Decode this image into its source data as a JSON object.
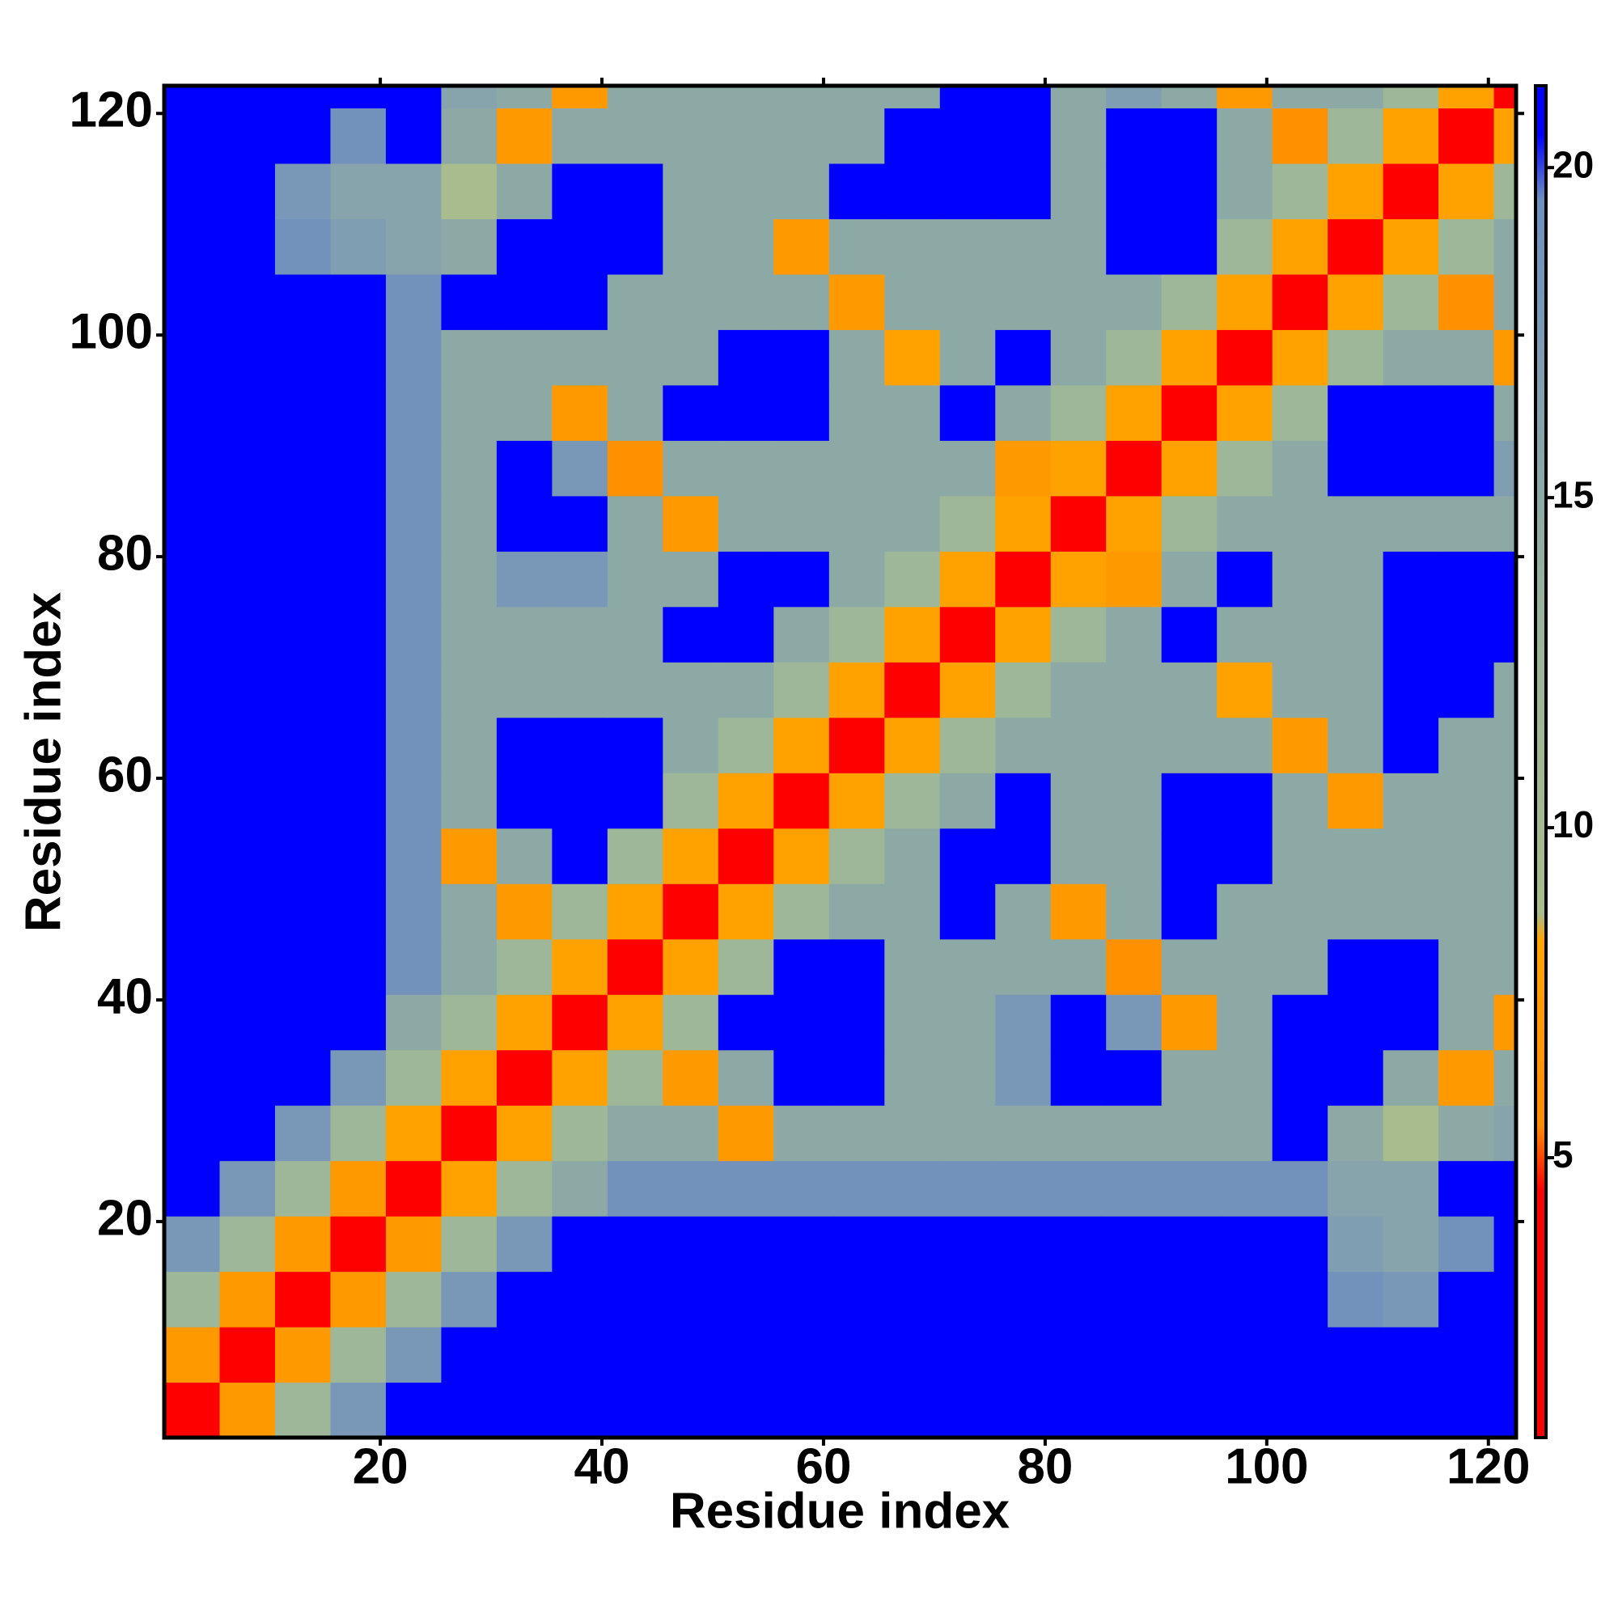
{
  "chart_data": {
    "type": "heatmap",
    "xlabel": "Residue index",
    "ylabel": "Residue index",
    "xbins": [
      0.5,
      5.5,
      10.5,
      15.5,
      20.5,
      25.5,
      30.5,
      35.5,
      40.5,
      45.5,
      50.5,
      55.5,
      60.5,
      65.5,
      70.5,
      75.5,
      80.5,
      85.5,
      90.5,
      95.5,
      100.5,
      105.5,
      110.5,
      115.5,
      120.5,
      122.5
    ],
    "ybins": [
      0.5,
      5.5,
      10.5,
      15.5,
      20.5,
      25.5,
      30.5,
      35.5,
      40.5,
      45.5,
      50.5,
      55.5,
      60.5,
      65.5,
      70.5,
      75.5,
      80.5,
      85.5,
      90.5,
      95.5,
      100.5,
      105.5,
      110.5,
      115.5,
      120.5,
      122.5
    ],
    "z": [
      [
        4,
        7,
        12,
        18,
        21,
        21,
        21,
        21,
        21,
        21,
        21,
        21,
        21,
        21,
        21,
        21,
        21,
        21,
        21,
        21,
        21,
        21,
        21,
        21,
        21
      ],
      [
        7,
        4,
        7,
        12,
        18,
        21,
        21,
        21,
        21,
        21,
        21,
        21,
        21,
        21,
        21,
        21,
        21,
        21,
        21,
        21,
        21,
        21,
        21,
        21,
        21
      ],
      [
        12,
        7,
        4,
        7,
        12,
        18,
        21,
        21,
        21,
        21,
        21,
        21,
        21,
        21,
        21,
        21,
        21,
        21,
        21,
        21,
        21,
        19,
        18,
        21,
        21
      ],
      [
        18,
        12,
        7,
        4,
        7,
        12,
        18,
        21,
        21,
        21,
        21,
        21,
        21,
        21,
        21,
        21,
        21,
        21,
        21,
        21,
        21,
        17,
        16,
        19,
        21
      ],
      [
        21,
        18,
        12,
        7,
        4,
        8,
        12,
        15,
        19,
        19,
        19,
        19,
        19,
        19,
        19,
        19,
        19,
        19,
        19,
        19,
        19,
        16,
        16,
        21,
        21
      ],
      [
        21,
        21,
        18,
        12,
        8,
        4,
        8,
        12,
        15,
        15,
        7,
        15,
        15,
        15,
        15,
        15,
        15,
        15,
        15,
        15,
        21,
        15,
        9,
        15,
        16
      ],
      [
        21,
        21,
        21,
        18,
        12,
        8,
        4,
        8,
        12,
        7,
        15,
        21,
        21,
        15,
        15,
        18,
        21,
        21,
        15,
        15,
        21,
        21,
        15,
        7,
        15
      ],
      [
        21,
        21,
        21,
        21,
        15,
        12,
        8,
        4,
        8,
        12,
        21,
        21,
        21,
        15,
        15,
        18,
        21,
        18,
        7,
        15,
        21,
        21,
        21,
        15,
        7
      ],
      [
        21,
        21,
        21,
        21,
        19,
        15,
        12,
        8,
        4,
        8,
        12,
        21,
        21,
        15,
        15,
        15,
        15,
        6,
        15,
        15,
        15,
        21,
        21,
        15,
        15
      ],
      [
        21,
        21,
        21,
        21,
        19,
        15,
        7,
        12,
        8,
        4,
        8,
        12,
        15,
        15,
        21,
        15,
        7,
        15,
        21,
        15,
        15,
        15,
        15,
        15,
        15
      ],
      [
        21,
        21,
        21,
        21,
        19,
        7,
        15,
        21,
        12,
        8,
        4,
        8,
        12,
        15,
        21,
        21,
        15,
        15,
        21,
        21,
        15,
        15,
        15,
        15,
        15
      ],
      [
        21,
        21,
        21,
        21,
        19,
        15,
        21,
        21,
        21,
        12,
        8,
        4,
        8,
        12,
        15,
        21,
        15,
        15,
        21,
        21,
        15,
        7,
        15,
        15,
        15
      ],
      [
        21,
        21,
        21,
        21,
        19,
        15,
        21,
        21,
        21,
        15,
        12,
        8,
        4,
        8,
        12,
        15,
        15,
        15,
        15,
        15,
        7,
        15,
        21,
        15,
        15
      ],
      [
        21,
        21,
        21,
        21,
        19,
        15,
        15,
        15,
        15,
        15,
        15,
        12,
        8,
        4,
        8,
        12,
        15,
        15,
        15,
        8,
        15,
        15,
        21,
        21,
        15
      ],
      [
        21,
        21,
        21,
        21,
        19,
        15,
        15,
        15,
        15,
        21,
        21,
        15,
        12,
        8,
        4,
        8,
        12,
        15,
        21,
        15,
        15,
        15,
        21,
        21,
        21
      ],
      [
        21,
        21,
        21,
        21,
        19,
        15,
        18,
        18,
        15,
        15,
        21,
        21,
        15,
        12,
        8,
        4,
        8,
        7,
        15,
        21,
        15,
        15,
        21,
        21,
        21
      ],
      [
        21,
        21,
        21,
        21,
        19,
        15,
        21,
        21,
        15,
        7,
        15,
        15,
        15,
        15,
        12,
        8,
        4,
        8,
        12,
        15,
        15,
        15,
        15,
        15,
        15
      ],
      [
        21,
        21,
        21,
        21,
        19,
        15,
        21,
        18,
        6,
        15,
        15,
        15,
        15,
        15,
        15,
        7,
        8,
        4,
        8,
        12,
        15,
        21,
        21,
        21,
        17
      ],
      [
        21,
        21,
        21,
        21,
        19,
        15,
        15,
        7,
        15,
        21,
        21,
        21,
        15,
        15,
        21,
        15,
        12,
        8,
        4,
        8,
        12,
        21,
        21,
        21,
        15
      ],
      [
        21,
        21,
        21,
        21,
        19,
        15,
        15,
        15,
        15,
        15,
        21,
        21,
        15,
        8,
        15,
        21,
        15,
        12,
        8,
        4,
        8,
        12,
        15,
        15,
        7
      ],
      [
        21,
        21,
        21,
        21,
        19,
        21,
        21,
        21,
        15,
        15,
        15,
        15,
        7,
        15,
        15,
        15,
        15,
        15,
        12,
        8,
        4,
        8,
        12,
        6,
        15
      ],
      [
        21,
        21,
        19,
        17,
        16,
        15,
        21,
        21,
        21,
        15,
        15,
        7,
        15,
        15,
        15,
        15,
        15,
        21,
        21,
        12,
        8,
        4,
        8,
        12,
        15
      ],
      [
        21,
        21,
        18,
        16,
        16,
        9,
        15,
        21,
        21,
        15,
        15,
        15,
        21,
        21,
        21,
        21,
        15,
        21,
        21,
        15,
        12,
        8,
        4,
        8,
        12
      ],
      [
        21,
        21,
        21,
        19,
        21,
        15,
        7,
        15,
        15,
        15,
        15,
        15,
        15,
        21,
        21,
        21,
        15,
        21,
        21,
        15,
        6,
        12,
        8,
        4,
        8
      ],
      [
        21,
        21,
        21,
        21,
        21,
        16,
        15,
        7,
        15,
        15,
        15,
        15,
        15,
        15,
        21,
        21,
        15,
        17,
        15,
        7,
        15,
        15,
        12,
        8,
        4
      ]
    ],
    "xlim": [
      0.5,
      122.5
    ],
    "ylim": [
      0.5,
      122.5
    ],
    "xticks": [
      20,
      40,
      60,
      80,
      100,
      120
    ],
    "yticks": [
      20,
      40,
      60,
      80,
      100,
      120
    ],
    "colorbar": {
      "zlim": [
        0.76,
        21.24
      ],
      "ticks": [
        5,
        10,
        15,
        20
      ]
    },
    "colorscale": [
      [
        0.76,
        "#ff0000"
      ],
      [
        4.5,
        "#ff0000"
      ],
      [
        5.5,
        "#ff8c00"
      ],
      [
        8.3,
        "#ffa500"
      ],
      [
        8.7,
        "#a9bc8c"
      ],
      [
        13,
        "#9bb59b"
      ],
      [
        19.5,
        "#6f8fbf"
      ],
      [
        20.5,
        "#0000ff"
      ],
      [
        21.24,
        "#0000ff"
      ]
    ]
  }
}
